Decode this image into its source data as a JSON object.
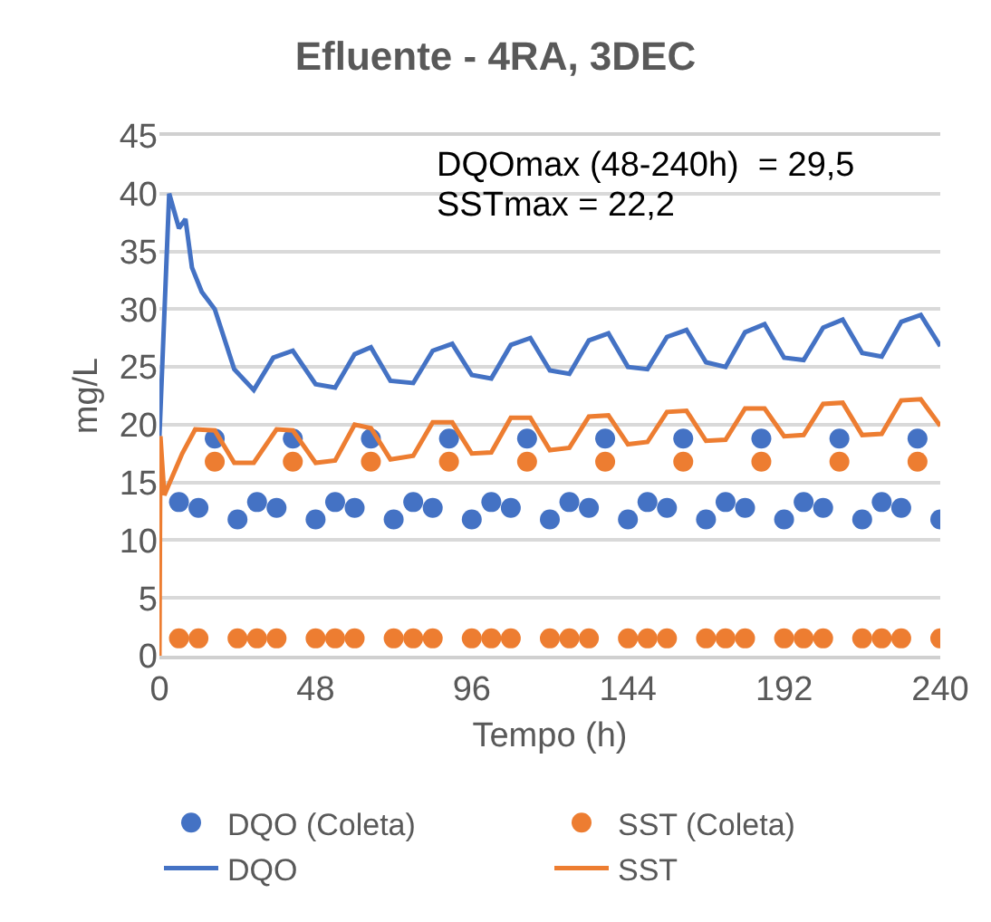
{
  "chart_data": {
    "type": "line",
    "title": "Efluente - 4RA, 3DEC",
    "xlabel": "Tempo (h)",
    "ylabel": "mg/L",
    "annotations": [
      "DQOmax (48-240h)  = 29,5",
      "SSTmax = 22,2"
    ],
    "xlim": [
      0,
      240
    ],
    "xticks": [
      0,
      48,
      96,
      144,
      192,
      240
    ],
    "ylim": [
      0,
      45
    ],
    "yticks": [
      0,
      5,
      10,
      15,
      20,
      25,
      30,
      35,
      40,
      45
    ],
    "grid": "y",
    "legend": "bottom",
    "series": [
      {
        "name": "DQO (Coleta)",
        "type": "scatter",
        "marker": "circle",
        "color": "#4472c4",
        "x": [
          6,
          12,
          17,
          24,
          30,
          36,
          41,
          48,
          54,
          60,
          65,
          72,
          78,
          84,
          89,
          96,
          102,
          108,
          113,
          120,
          126,
          132,
          137,
          144,
          150,
          156,
          161,
          168,
          174,
          180,
          185,
          192,
          198,
          204,
          209,
          216,
          222,
          228,
          233,
          240
        ],
        "values": [
          13.3,
          12.8,
          18.8,
          11.8,
          13.3,
          12.8,
          18.8,
          11.8,
          13.3,
          12.8,
          18.8,
          11.8,
          13.3,
          12.8,
          18.8,
          11.8,
          13.3,
          12.8,
          18.8,
          11.8,
          13.3,
          12.8,
          18.8,
          11.8,
          13.3,
          12.8,
          18.8,
          11.8,
          13.3,
          12.8,
          18.8,
          11.8,
          13.3,
          12.8,
          18.8,
          11.8,
          13.3,
          12.8,
          18.8,
          11.8
        ]
      },
      {
        "name": "SST (Coleta)",
        "type": "scatter",
        "marker": "circle",
        "color": "#ed7d31",
        "x": [
          6,
          12,
          17,
          24,
          30,
          36,
          41,
          48,
          54,
          60,
          65,
          72,
          78,
          84,
          89,
          96,
          102,
          108,
          113,
          120,
          126,
          132,
          137,
          144,
          150,
          156,
          161,
          168,
          174,
          180,
          185,
          192,
          198,
          204,
          209,
          216,
          222,
          228,
          233,
          240
        ],
        "values": [
          1.5,
          1.5,
          16.8,
          1.5,
          1.5,
          1.5,
          16.8,
          1.5,
          1.5,
          1.5,
          16.8,
          1.5,
          1.5,
          1.5,
          16.8,
          1.5,
          1.5,
          1.5,
          16.8,
          1.5,
          1.5,
          1.5,
          16.8,
          1.5,
          1.5,
          1.5,
          16.8,
          1.5,
          1.5,
          1.5,
          16.8,
          1.5,
          1.5,
          1.5,
          16.8,
          1.5,
          1.5,
          1.5,
          16.8,
          1.5
        ]
      },
      {
        "name": "DQO",
        "marker": "none",
        "color": "#4472c4",
        "x": [
          0,
          3,
          6,
          8,
          10,
          13,
          17,
          23,
          29,
          35,
          41,
          48,
          54,
          60,
          65,
          71,
          78,
          84,
          90,
          96,
          102,
          108,
          114,
          120,
          126,
          132,
          138,
          144,
          150,
          156,
          162,
          168,
          174,
          180,
          186,
          192,
          198,
          204,
          210,
          216,
          222,
          228,
          234,
          240
        ],
        "values": [
          19,
          40,
          37,
          37.8,
          33.6,
          31.5,
          30,
          24.8,
          23,
          25.8,
          26.4,
          23.5,
          23.2,
          26.1,
          26.7,
          23.8,
          23.6,
          26.4,
          27,
          24.3,
          24,
          26.9,
          27.5,
          24.7,
          24.4,
          27.3,
          27.9,
          25,
          24.8,
          27.6,
          28.2,
          25.4,
          25,
          28,
          28.7,
          25.8,
          25.6,
          28.4,
          29.1,
          26.2,
          25.9,
          28.9,
          29.5,
          26.8
        ]
      },
      {
        "name": "SST",
        "marker": "none",
        "color": "#ed7d31",
        "x": [
          0,
          0.3,
          1.5,
          7,
          11,
          17,
          23,
          29,
          36,
          41,
          48,
          54,
          60,
          65,
          71,
          78,
          84,
          90,
          96,
          102,
          108,
          114,
          120,
          126,
          132,
          138,
          144,
          150,
          156,
          162,
          168,
          174,
          180,
          186,
          192,
          198,
          204,
          210,
          216,
          222,
          228,
          234,
          240
        ],
        "values": [
          0,
          19,
          13.9,
          17.5,
          19.6,
          19.5,
          16.7,
          16.7,
          19.6,
          19.5,
          16.7,
          16.9,
          20,
          19.7,
          17,
          17.3,
          20.2,
          20.2,
          17.5,
          17.6,
          20.6,
          20.6,
          17.8,
          18,
          20.7,
          20.8,
          18.3,
          18.5,
          21.1,
          21.2,
          18.6,
          18.7,
          21.4,
          21.4,
          19,
          19.1,
          21.8,
          21.9,
          19.1,
          19.2,
          22.1,
          22.2,
          19.9
        ]
      }
    ]
  }
}
